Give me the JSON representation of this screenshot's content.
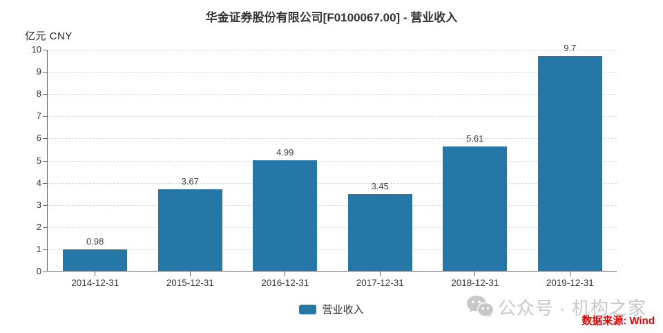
{
  "header": {
    "title": "华金证券股份有限公司[F0100067.00] - 营业收入"
  },
  "chart_data": {
    "type": "bar",
    "title": "华金证券股份有限公司[F0100067.00] - 营业收入",
    "unit_label": "亿元 CNY",
    "categories": [
      "2014-12-31",
      "2015-12-31",
      "2016-12-31",
      "2017-12-31",
      "2018-12-31",
      "2019-12-31"
    ],
    "series": [
      {
        "name": "营业收入",
        "values": [
          0.98,
          3.67,
          4.99,
          3.45,
          5.61,
          9.7
        ]
      }
    ],
    "value_labels": [
      "0.98",
      "3.67",
      "4.99",
      "3.45",
      "5.61",
      "9.7"
    ],
    "xlabel": "",
    "ylabel": "亿元 CNY",
    "ylim": [
      0,
      10
    ],
    "y_tick_step": 1,
    "grid": true,
    "grid_style": "dashed",
    "legend_position": "bottom",
    "bar_color": "#2477a7"
  },
  "legend": {
    "items": [
      {
        "label": "营业收入",
        "color": "#2477a7"
      }
    ]
  },
  "footer": {
    "watermark_text": "公众号 · 机构之家",
    "watermark_icon": "wechat-icon",
    "watermark_color": "#c8c8c8",
    "source_text": "数据来源: Wind",
    "source_color": "#e00000"
  }
}
